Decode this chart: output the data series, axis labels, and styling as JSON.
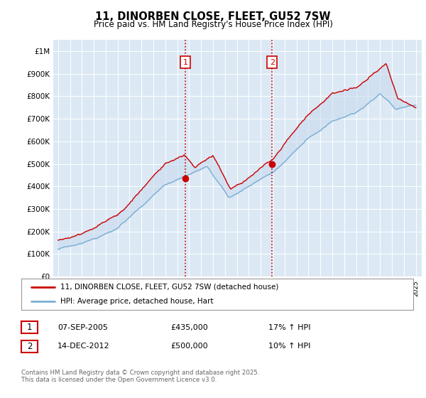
{
  "title": "11, DINORBEN CLOSE, FLEET, GU52 7SW",
  "subtitle": "Price paid vs. HM Land Registry's House Price Index (HPI)",
  "legend_line1": "11, DINORBEN CLOSE, FLEET, GU52 7SW (detached house)",
  "legend_line2": "HPI: Average price, detached house, Hart",
  "annotation1_date": "07-SEP-2005",
  "annotation1_price": "£435,000",
  "annotation1_hpi": "17% ↑ HPI",
  "annotation2_date": "14-DEC-2012",
  "annotation2_price": "£500,000",
  "annotation2_hpi": "10% ↑ HPI",
  "footnote": "Contains HM Land Registry data © Crown copyright and database right 2025.\nThis data is licensed under the Open Government Licence v3.0.",
  "hpi_color": "#7bafd4",
  "price_color": "#cc0000",
  "vline_color": "#cc0000",
  "fill_color": "#c5d9ed",
  "background_color": "#dce9f5",
  "plot_bg": "#ffffff",
  "ylim": [
    0,
    1050000
  ],
  "yticks": [
    0,
    100000,
    200000,
    300000,
    400000,
    500000,
    600000,
    700000,
    800000,
    900000,
    1000000
  ],
  "ytick_labels": [
    "£0",
    "£100K",
    "£200K",
    "£300K",
    "£400K",
    "£500K",
    "£600K",
    "£700K",
    "£800K",
    "£900K",
    "£1M"
  ],
  "sale1_year": 2005.68,
  "sale1_value": 435000,
  "sale2_year": 2012.95,
  "sale2_value": 500000
}
